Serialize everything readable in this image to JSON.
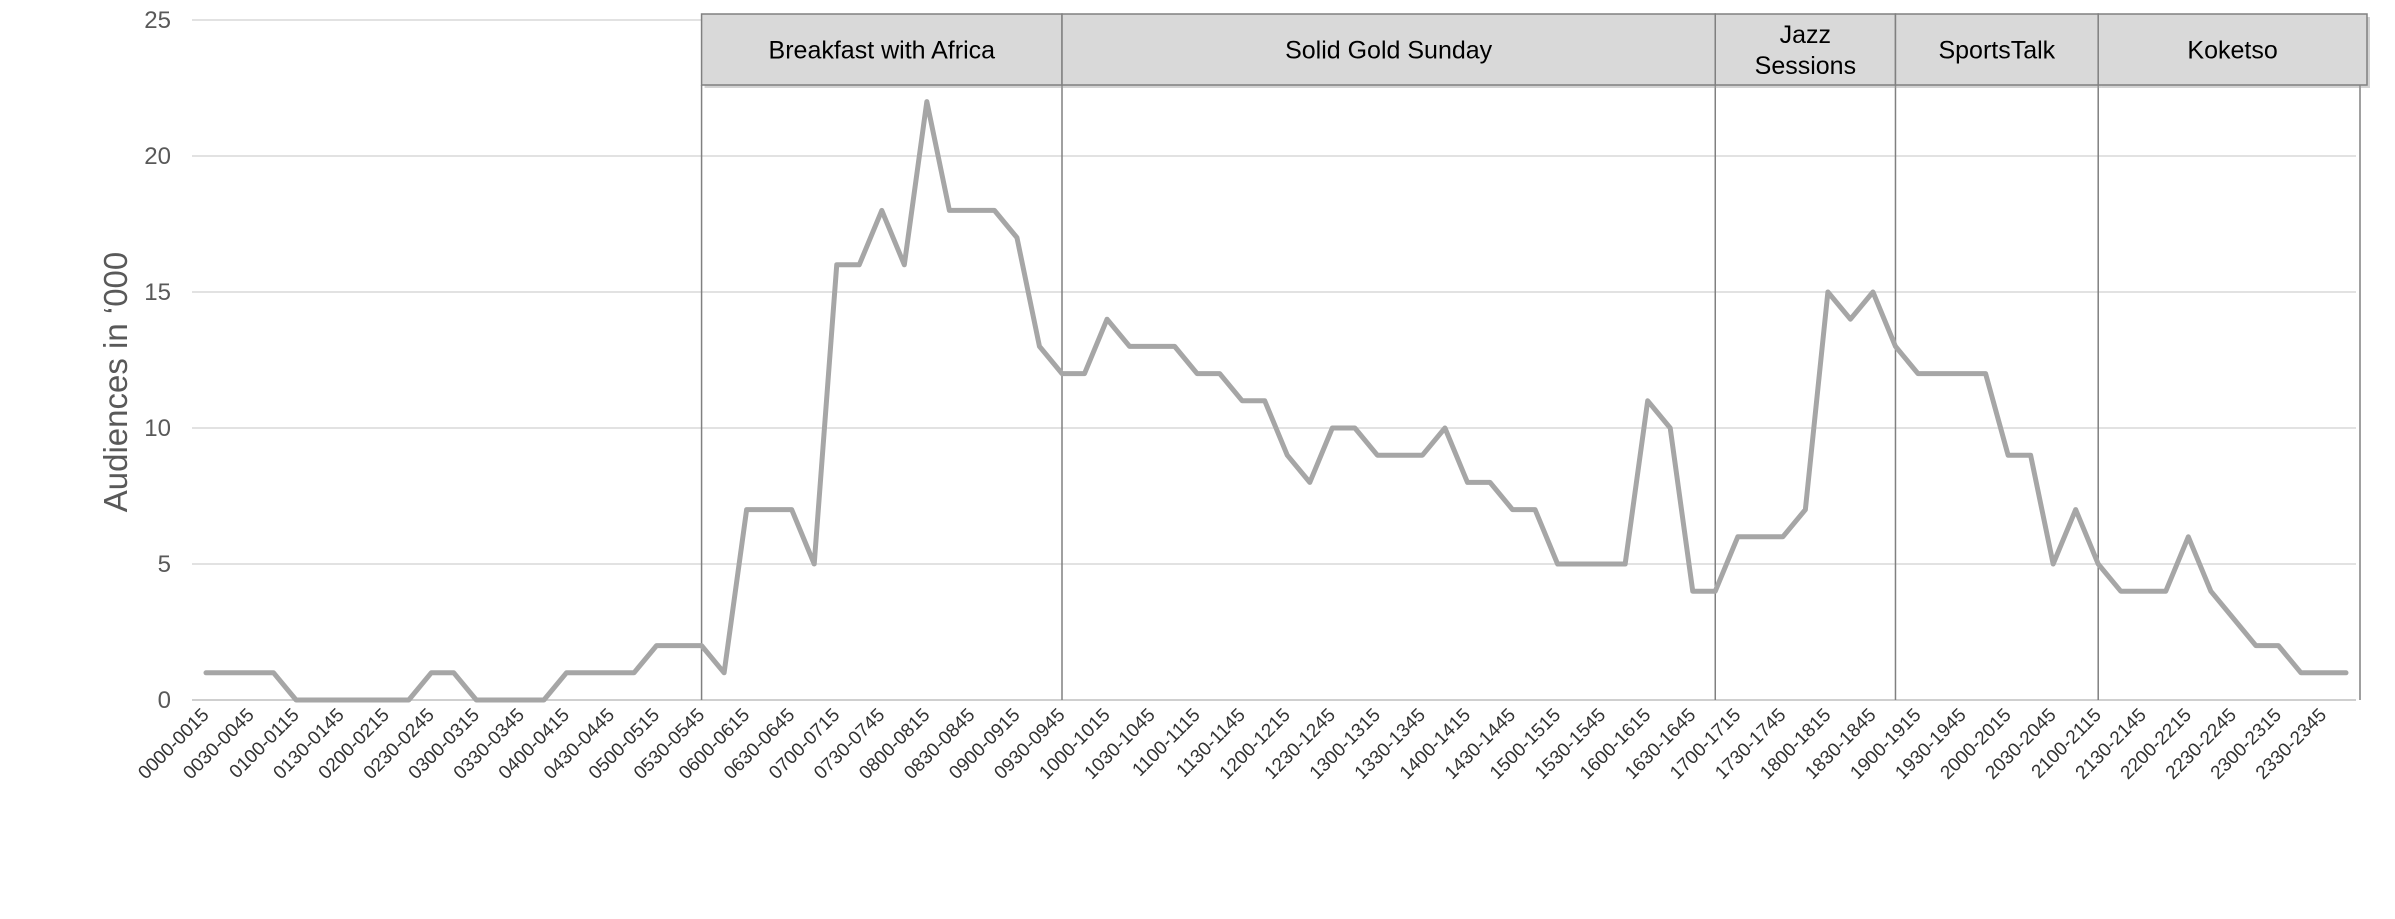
{
  "chart_data": {
    "type": "line",
    "xlabel": "",
    "ylabel": "Audiences in ‘000",
    "ylim": [
      0,
      25
    ],
    "yticks": [
      0,
      5,
      10,
      15,
      20,
      25
    ],
    "grid": true,
    "x": [
      "0000-0015",
      "0015-0030",
      "0030-0045",
      "0045-0100",
      "0100-0115",
      "0115-0130",
      "0130-0145",
      "0145-0200",
      "0200-0215",
      "0215-0230",
      "0230-0245",
      "0245-0300",
      "0300-0315",
      "0315-0330",
      "0330-0345",
      "0345-0400",
      "0400-0415",
      "0415-0430",
      "0430-0445",
      "0445-0500",
      "0500-0515",
      "0515-0530",
      "0530-0545",
      "0545-0600",
      "0600-0615",
      "0615-0630",
      "0630-0645",
      "0645-0700",
      "0700-0715",
      "0715-0730",
      "0730-0745",
      "0745-0800",
      "0800-0815",
      "0815-0830",
      "0830-0845",
      "0845-0900",
      "0900-0915",
      "0915-0930",
      "0930-0945",
      "0945-1000",
      "1000-1015",
      "1015-1030",
      "1030-1045",
      "1045-1100",
      "1100-1115",
      "1115-1130",
      "1130-1145",
      "1145-1200",
      "1200-1215",
      "1215-1230",
      "1230-1245",
      "1245-1300",
      "1300-1315",
      "1315-1330",
      "1330-1345",
      "1345-1400",
      "1400-1415",
      "1415-1430",
      "1430-1445",
      "1445-1500",
      "1500-1515",
      "1515-1530",
      "1530-1545",
      "1545-1600",
      "1600-1615",
      "1615-1630",
      "1630-1645",
      "1645-1700",
      "1700-1715",
      "1715-1730",
      "1730-1745",
      "1745-1800",
      "1800-1815",
      "1815-1830",
      "1830-1845",
      "1845-1900",
      "1900-1915",
      "1915-1930",
      "1930-1945",
      "1945-2000",
      "2000-2015",
      "2015-2030",
      "2030-2045",
      "2045-2100",
      "2100-2115",
      "2115-2130",
      "2130-2145",
      "2145-2200",
      "2200-2215",
      "2215-2230",
      "2230-2245",
      "2245-2300",
      "2300-2315",
      "2315-2330",
      "2330-2345",
      "2345-0000"
    ],
    "x_tick_labels": [
      "0000-0015",
      "0030-0045",
      "0100-0115",
      "0130-0145",
      "0200-0215",
      "0230-0245",
      "0300-0315",
      "0330-0345",
      "0400-0415",
      "0430-0445",
      "0500-0515",
      "0530-0545",
      "0600-0615",
      "0630-0645",
      "0700-0715",
      "0730-0745",
      "0800-0815",
      "0830-0845",
      "0900-0915",
      "0930-0945",
      "1000-1015",
      "1030-1045",
      "1100-1115",
      "1130-1145",
      "1200-1215",
      "1230-1245",
      "1300-1315",
      "1330-1345",
      "1400-1415",
      "1430-1445",
      "1500-1515",
      "1530-1545",
      "1600-1615",
      "1630-1645",
      "1700-1715",
      "1730-1745",
      "1800-1815",
      "1830-1845",
      "1900-1915",
      "1930-1945",
      "2000-2015",
      "2030-2045",
      "2100-2115",
      "2130-2145",
      "2200-2215",
      "2230-2245",
      "2300-2315",
      "2330-2345"
    ],
    "series": [
      {
        "values": [
          1,
          1,
          1,
          1,
          0,
          0,
          0,
          0,
          0,
          0,
          1,
          1,
          0,
          0,
          0,
          0,
          1,
          1,
          1,
          1,
          2,
          2,
          2,
          1,
          7,
          7,
          7,
          5,
          16,
          16,
          18,
          16,
          22,
          18,
          18,
          18,
          17,
          13,
          12,
          12,
          14,
          13,
          13,
          13,
          12,
          12,
          11,
          11,
          9,
          8,
          10,
          10,
          9,
          9,
          9,
          10,
          8,
          8,
          7,
          7,
          5,
          5,
          5,
          5,
          11,
          10,
          4,
          4,
          6,
          6,
          6,
          7,
          15,
          14,
          15,
          13,
          12,
          12,
          12,
          12,
          9,
          9,
          5,
          7,
          5,
          4,
          4,
          4,
          6,
          4,
          3,
          2,
          2,
          1,
          1,
          1
        ],
        "color": "#a6a6a6"
      }
    ],
    "bands": [
      {
        "label": "Breakfast with Africa",
        "start_index": 22,
        "end_index": 38
      },
      {
        "label": "Solid Gold Sunday",
        "start_index": 38,
        "end_index": 67
      },
      {
        "label": "Jazz\nSessions",
        "start_index": 67,
        "end_index": 75
      },
      {
        "label": "SportsTalk",
        "start_index": 75,
        "end_index": 84
      },
      {
        "label": "Koketso",
        "start_index": 84,
        "end_index": 96
      }
    ],
    "colors": {
      "line": "#a6a6a6",
      "gridline": "#d9d9d9",
      "band_fill": "#d9d9d9",
      "band_border": "#808080",
      "divider": "#808080"
    }
  }
}
